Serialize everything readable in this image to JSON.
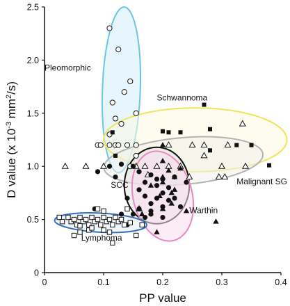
{
  "chart_data": {
    "type": "scatter",
    "xlabel": "PP value",
    "ylabel": "D value (x 10",
    "ylabel_exponent": "-3",
    "ylabel_unit": " mm",
    "ylabel_unit_exponent": "2",
    "ylabel_suffix": "/s)",
    "xlim": [
      0,
      0.4
    ],
    "ylim": [
      0,
      2.5
    ],
    "xticks": [
      "0",
      "0.1",
      "0.2",
      "0.3",
      "0.4"
    ],
    "yticks": [
      "0",
      "0.5",
      "1.0",
      "1.5",
      "2.0",
      "2.5"
    ],
    "xtick_values": [
      0,
      0.1,
      0.2,
      0.3,
      0.4
    ],
    "ytick_values": [
      0,
      0.5,
      1.0,
      1.5,
      2.0,
      2.5
    ],
    "grid": false,
    "legend": "none",
    "groups": [
      {
        "name": "Pleomorphic",
        "marker": "open-circle",
        "ellipse": {
          "cx": 0.13,
          "cy": 1.72,
          "rx": 0.032,
          "ry": 0.78,
          "angle": 2,
          "stroke": "#6cc4e6",
          "fill": "#d4eef9"
        },
        "points": [
          [
            0.11,
            2.3
          ],
          [
            0.125,
            2.1
          ],
          [
            0.145,
            1.8
          ],
          [
            0.135,
            1.7
          ],
          [
            0.115,
            1.6
          ],
          [
            0.155,
            1.5
          ],
          [
            0.12,
            1.45
          ],
          [
            0.13,
            1.4
          ],
          [
            0.11,
            1.3
          ],
          [
            0.09,
            1.2
          ],
          [
            0.095,
            1.2
          ],
          [
            0.11,
            1.2
          ],
          [
            0.12,
            1.2
          ],
          [
            0.125,
            1.2
          ],
          [
            0.14,
            1.2
          ],
          [
            0.155,
            1.2
          ],
          [
            0.155,
            1.1
          ],
          [
            0.145,
            1.0
          ]
        ]
      },
      {
        "name": "Schwannoma",
        "marker": "filled-square",
        "ellipse": {
          "cx": 0.255,
          "cy": 1.25,
          "rx": 0.155,
          "ry": 0.3,
          "angle": 0,
          "stroke": "#f0e45a",
          "fill": "#fdfae1"
        },
        "points": [
          [
            0.27,
            1.58
          ],
          [
            0.28,
            1.35
          ],
          [
            0.38,
            1.01
          ],
          [
            0.2,
            1.33
          ],
          [
            0.325,
            1.2
          ],
          [
            0.28,
            1.15
          ],
          [
            0.21,
            1.32
          ],
          [
            0.23,
            1.32
          ],
          [
            0.115,
            1.32
          ],
          [
            0.12,
            1.1
          ],
          [
            0.35,
            1.2
          ]
        ]
      },
      {
        "name": "Malignant SG",
        "marker": "open-triangle",
        "ellipse": {
          "cx": 0.235,
          "cy": 1.05,
          "rx": 0.135,
          "ry": 0.22,
          "angle": -5,
          "stroke": "#b3b3b3",
          "fill": "#f1f1ea"
        },
        "points": [
          [
            0.335,
            1.4
          ],
          [
            0.21,
            1.2
          ],
          [
            0.25,
            1.2
          ],
          [
            0.27,
            1.2
          ],
          [
            0.31,
            1.2
          ],
          [
            0.155,
            1.0
          ],
          [
            0.17,
            1.0
          ],
          [
            0.19,
            1.0
          ],
          [
            0.21,
            1.0
          ],
          [
            0.23,
            1.0
          ],
          [
            0.27,
            1.1
          ],
          [
            0.3,
            1.0
          ],
          [
            0.34,
            1.0
          ],
          [
            0.245,
            0.9
          ],
          [
            0.295,
            0.9
          ],
          [
            0.305,
            0.9
          ],
          [
            0.175,
            0.92
          ],
          [
            0.035,
            1.0
          ],
          [
            0.07,
            1.0
          ],
          [
            0.1,
            1.0
          ],
          [
            0.16,
            0.6
          ]
        ]
      },
      {
        "name": "SCC",
        "marker": "filled-circle",
        "ellipse": {
          "cx": 0.19,
          "cy": 0.82,
          "rx": 0.055,
          "ry": 0.36,
          "angle": 0,
          "stroke": "#111111",
          "fill": "#e3e3e3"
        },
        "points": [
          [
            0.13,
            1.02
          ],
          [
            0.15,
            1.0
          ],
          [
            0.16,
            0.95
          ],
          [
            0.18,
            0.92
          ],
          [
            0.19,
            0.88
          ],
          [
            0.2,
            0.88
          ],
          [
            0.17,
            0.85
          ],
          [
            0.19,
            0.82
          ],
          [
            0.21,
            0.8
          ],
          [
            0.16,
            0.78
          ],
          [
            0.2,
            0.75
          ],
          [
            0.17,
            0.72
          ],
          [
            0.19,
            0.7
          ],
          [
            0.21,
            0.68
          ],
          [
            0.18,
            0.65
          ],
          [
            0.2,
            0.62
          ],
          [
            0.23,
            0.62
          ],
          [
            0.16,
            0.6
          ],
          [
            0.18,
            0.58
          ],
          [
            0.15,
            0.55
          ],
          [
            0.17,
            0.52
          ],
          [
            0.2,
            0.52
          ],
          [
            0.14,
            0.45
          ],
          [
            0.18,
            0.55
          ],
          [
            0.22,
            0.9
          ],
          [
            0.24,
            0.85
          ],
          [
            0.14,
            0.7
          ],
          [
            0.22,
            0.7
          ],
          [
            0.12,
            0.9
          ],
          [
            0.09,
            0.95
          ],
          [
            0.11,
            1.0
          ],
          [
            0.085,
            0.6
          ],
          [
            0.13,
            0.55
          ]
        ]
      },
      {
        "name": "Warthin",
        "marker": "filled-triangle",
        "ellipse": {
          "cx": 0.2,
          "cy": 0.72,
          "rx": 0.05,
          "ry": 0.43,
          "angle": -14,
          "stroke": "#e889c4",
          "fill": "#f9dcee"
        },
        "points": [
          [
            0.2,
            1.2
          ],
          [
            0.2,
            1.05
          ],
          [
            0.23,
            0.98
          ],
          [
            0.21,
            0.96
          ],
          [
            0.22,
            0.9
          ],
          [
            0.2,
            0.85
          ],
          [
            0.18,
            0.82
          ],
          [
            0.22,
            0.78
          ],
          [
            0.195,
            0.72
          ],
          [
            0.215,
            0.65
          ],
          [
            0.2,
            0.6
          ],
          [
            0.24,
            0.58
          ],
          [
            0.165,
            0.55
          ],
          [
            0.29,
            0.48
          ],
          [
            0.19,
            0.38
          ],
          [
            0.2,
            0.9
          ],
          [
            0.215,
            0.75
          ]
        ]
      },
      {
        "name": "Lymphoma",
        "marker": "open-square",
        "ellipse": {
          "cx": 0.095,
          "cy": 0.47,
          "rx": 0.078,
          "ry": 0.09,
          "angle": 3,
          "stroke": "#2f6fbe",
          "fill": "#e4edf8"
        },
        "points": [
          [
            0.025,
            0.52
          ],
          [
            0.03,
            0.48
          ],
          [
            0.04,
            0.52
          ],
          [
            0.045,
            0.48
          ],
          [
            0.05,
            0.5
          ],
          [
            0.055,
            0.45
          ],
          [
            0.06,
            0.52
          ],
          [
            0.065,
            0.48
          ],
          [
            0.07,
            0.5
          ],
          [
            0.075,
            0.45
          ],
          [
            0.08,
            0.52
          ],
          [
            0.085,
            0.48
          ],
          [
            0.09,
            0.5
          ],
          [
            0.095,
            0.45
          ],
          [
            0.1,
            0.52
          ],
          [
            0.105,
            0.48
          ],
          [
            0.11,
            0.5
          ],
          [
            0.115,
            0.45
          ],
          [
            0.12,
            0.52
          ],
          [
            0.125,
            0.48
          ],
          [
            0.13,
            0.5
          ],
          [
            0.135,
            0.45
          ],
          [
            0.06,
            0.38
          ],
          [
            0.075,
            0.4
          ],
          [
            0.08,
            0.42
          ],
          [
            0.1,
            0.4
          ],
          [
            0.11,
            0.38
          ],
          [
            0.115,
            0.28
          ],
          [
            0.05,
            0.35
          ],
          [
            0.09,
            0.6
          ],
          [
            0.1,
            0.58
          ],
          [
            0.155,
            0.35
          ],
          [
            0.14,
            0.6
          ],
          [
            0.145,
            0.47
          ],
          [
            0.165,
            0.45
          ],
          [
            0.06,
            0.44
          ]
        ]
      }
    ],
    "annotations": [
      {
        "text": "Pleomorphic",
        "x": 0.0,
        "y": 1.9
      },
      {
        "text": "Schwannoma",
        "x": 0.19,
        "y": 1.62
      },
      {
        "text": "Malignant SG",
        "x": 0.325,
        "y": 0.83
      },
      {
        "text": "SCC",
        "x": 0.112,
        "y": 0.8
      },
      {
        "text": "Warthin",
        "x": 0.245,
        "y": 0.56
      },
      {
        "text": "Lymphoma",
        "x": 0.062,
        "y": 0.3
      }
    ]
  }
}
